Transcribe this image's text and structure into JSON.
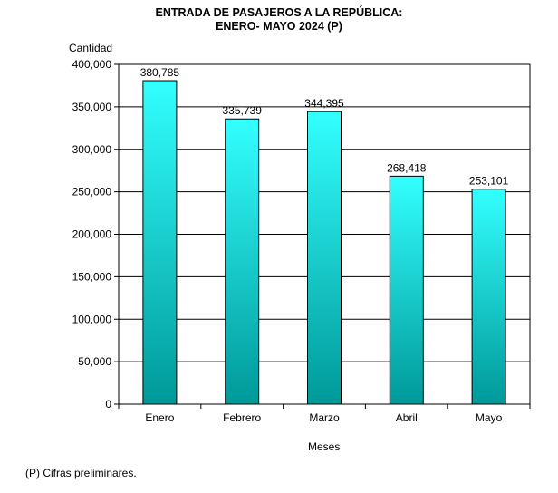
{
  "chart_data": {
    "type": "bar",
    "title": "ENTRADA  DE PASAJEROS  A LA REPÚBLICA:",
    "subtitle": "ENERO-  MAYO 2024 (P)",
    "ylabel": "Cantidad",
    "xlabel": "Meses",
    "categories": [
      "Enero",
      "Febrero",
      "Marzo",
      "Abril",
      "Mayo"
    ],
    "values": [
      380785,
      335739,
      344395,
      268418,
      253101
    ],
    "value_labels": [
      "380,785",
      "335,739",
      "344,395",
      "268,418",
      "253,101"
    ],
    "ylim": [
      0,
      400000
    ],
    "yticks": [
      0,
      50000,
      100000,
      150000,
      200000,
      250000,
      300000,
      350000,
      400000
    ],
    "ytick_labels": [
      "0",
      "50,000",
      "100,000",
      "150,000",
      "200,000",
      "250,000",
      "300,000",
      "350,000",
      "400,000"
    ],
    "grid": true,
    "bar_color_top": "#33ffff",
    "bar_color_bottom": "#009999"
  },
  "footnote": "(P) Cifras  preliminares."
}
